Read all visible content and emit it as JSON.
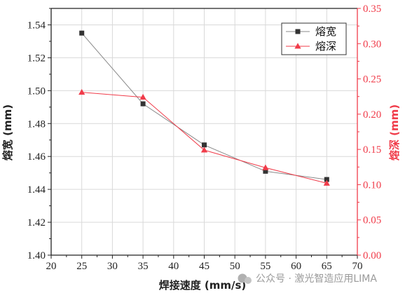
{
  "chart_data": {
    "type": "line",
    "x": [
      25,
      35,
      45,
      55,
      65
    ],
    "xlim": [
      20,
      70
    ],
    "xticks": [
      20,
      25,
      30,
      35,
      40,
      45,
      50,
      55,
      60,
      65,
      70
    ],
    "xlabel": "焊接速度 (mm/s)",
    "ylabel_left": "熔宽 (mm)",
    "ylabel_right": "熔深 (mm)",
    "ylim_left": [
      1.4,
      1.55
    ],
    "ylim_right": [
      0.0,
      0.35
    ],
    "yticks_left": [
      "1.40",
      "1.42",
      "1.44",
      "1.46",
      "1.48",
      "1.50",
      "1.52",
      "1.54"
    ],
    "yticks_right": [
      "0.00",
      "0.05",
      "0.10",
      "0.15",
      "0.20",
      "0.25",
      "0.30",
      "0.35"
    ],
    "grid": true,
    "legend_position": "top-right",
    "series": [
      {
        "name": "熔宽",
        "axis": "left",
        "marker": "square",
        "color": "#333333",
        "line_color": "#888888",
        "values": [
          1.535,
          1.492,
          1.467,
          1.451,
          1.446
        ]
      },
      {
        "name": "熔深",
        "axis": "right",
        "marker": "triangle",
        "color": "#f03c4a",
        "line_color": "#f03c4a",
        "values": [
          0.231,
          0.224,
          0.149,
          0.124,
          0.102
        ]
      }
    ],
    "left_axis_color": "#222222",
    "right_axis_color": "#f03c4a"
  },
  "watermark": {
    "icon": "wechat-icon",
    "text": "公众号 · 激光智造应用LIMA"
  }
}
